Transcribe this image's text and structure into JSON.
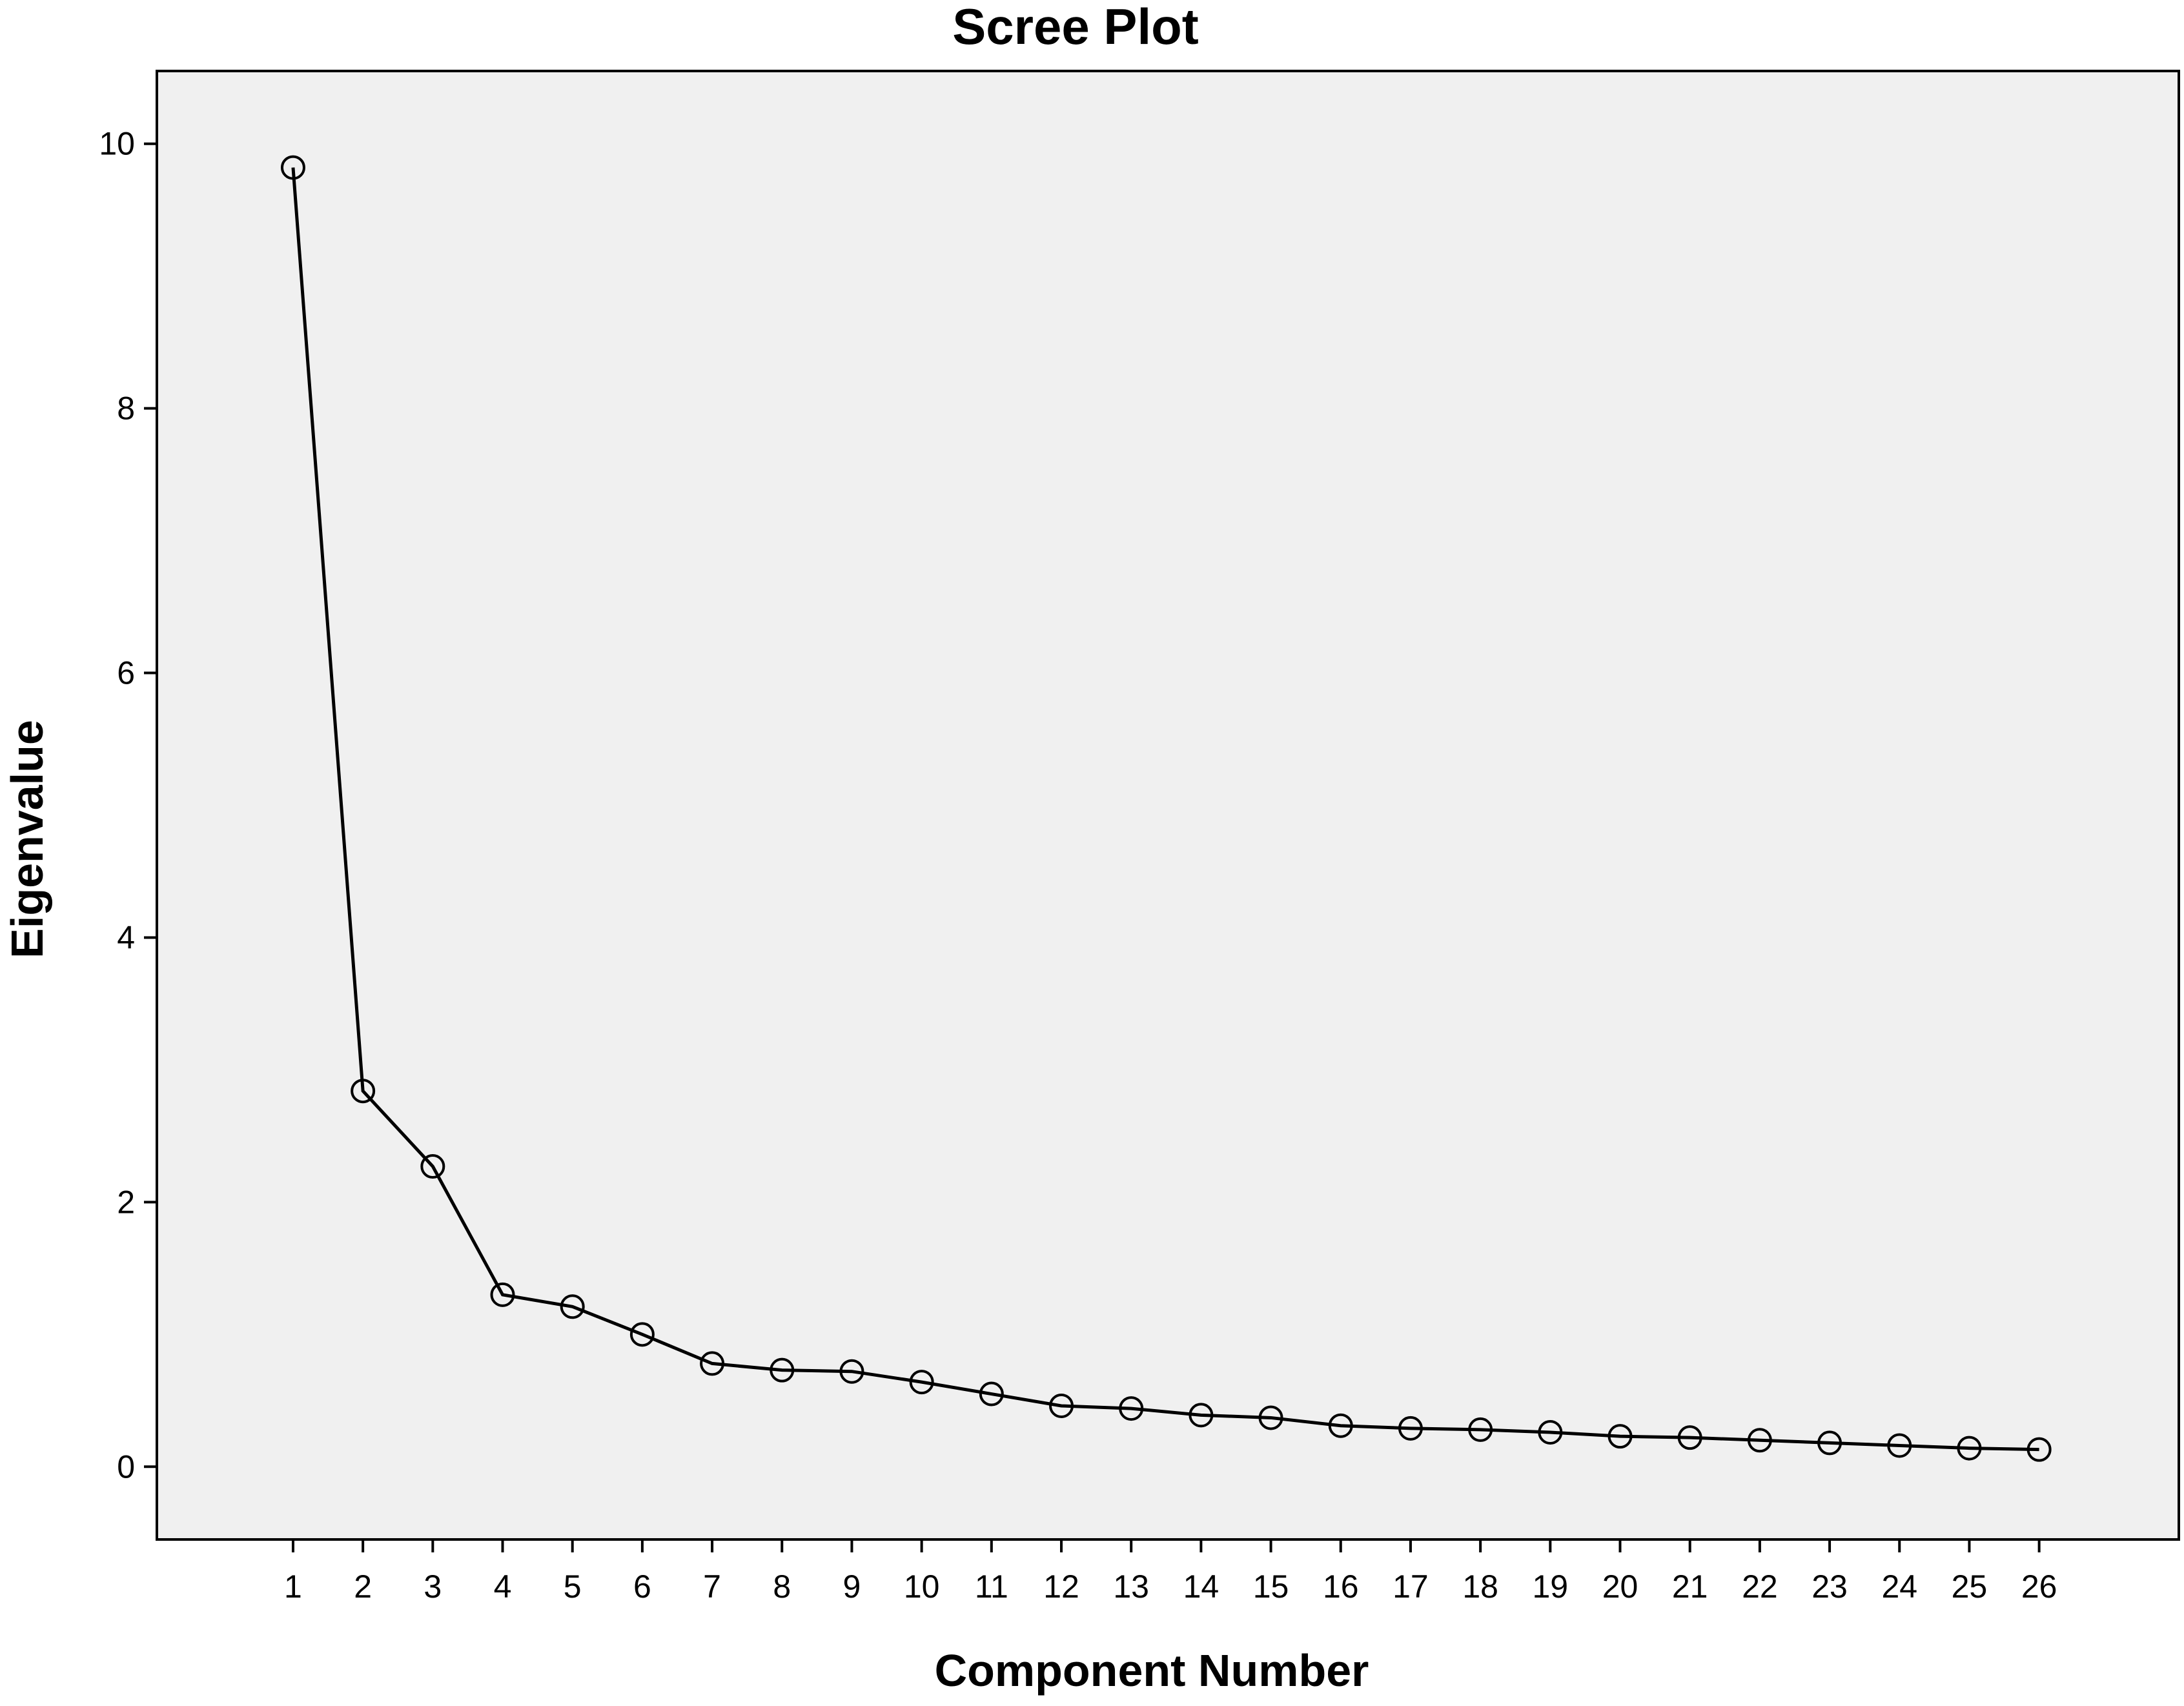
{
  "chart_data": {
    "type": "line",
    "title": "Scree Plot",
    "xlabel": "Component Number",
    "ylabel": "Eigenvalue",
    "x": [
      1,
      2,
      3,
      4,
      5,
      6,
      7,
      8,
      9,
      10,
      11,
      12,
      13,
      14,
      15,
      16,
      17,
      18,
      19,
      20,
      21,
      22,
      23,
      24,
      25,
      26
    ],
    "x_tick_labels": [
      "1",
      "2",
      "3",
      "4",
      "5",
      "6",
      "7",
      "8",
      "9",
      "10",
      "11",
      "12",
      "13",
      "14",
      "15",
      "16",
      "17",
      "18",
      "19",
      "20",
      "21",
      "22",
      "23",
      "24",
      "25",
      "26"
    ],
    "series": [
      {
        "values": [
          9.82,
          2.84,
          2.27,
          1.3,
          1.21,
          1.0,
          0.78,
          0.73,
          0.72,
          0.64,
          0.55,
          0.46,
          0.44,
          0.39,
          0.37,
          0.31,
          0.29,
          0.28,
          0.26,
          0.23,
          0.22,
          0.2,
          0.18,
          0.16,
          0.14,
          0.13
        ],
        "marker": "open-circle",
        "color": "#000000"
      }
    ],
    "y_ticks": [
      0,
      2,
      4,
      6,
      8,
      10
    ],
    "xlim": [
      -0.95,
      28
    ],
    "ylim": [
      -0.55,
      10.55
    ],
    "grid": false,
    "legend": "none",
    "plot_background": "#f0f0f0"
  }
}
